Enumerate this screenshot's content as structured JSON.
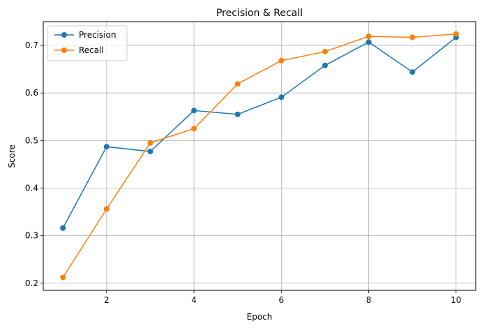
{
  "chart_data": {
    "type": "line",
    "title": "Precision & Recall",
    "xlabel": "Epoch",
    "ylabel": "Score",
    "x": [
      1,
      2,
      3,
      4,
      5,
      6,
      7,
      8,
      9,
      10
    ],
    "xlim": [
      0.55,
      10.45
    ],
    "ylim": [
      0.185,
      0.75
    ],
    "xticks": [
      2,
      4,
      6,
      8,
      10
    ],
    "yticks": [
      0.2,
      0.3,
      0.4,
      0.5,
      0.6,
      0.7
    ],
    "ytick_labels": [
      "0.2",
      "0.3",
      "0.4",
      "0.5",
      "0.6",
      "0.7"
    ],
    "grid": true,
    "legend_position": "upper-left",
    "series": [
      {
        "name": "Precision",
        "color": "#1f77b4",
        "marker": "circle",
        "values": [
          0.316,
          0.487,
          0.477,
          0.563,
          0.555,
          0.591,
          0.658,
          0.707,
          0.644,
          0.717
        ]
      },
      {
        "name": "Recall",
        "color": "#ff7f0e",
        "marker": "circle",
        "values": [
          0.212,
          0.356,
          0.495,
          0.525,
          0.619,
          0.668,
          0.687,
          0.719,
          0.717,
          0.724
        ]
      }
    ]
  }
}
